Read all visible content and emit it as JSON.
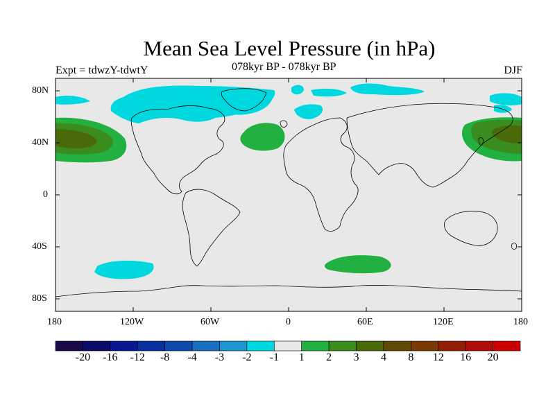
{
  "title": "Mean Sea Level Pressure (in hPa)",
  "subtitle_left": "Expt = tdwzY-tdwtY",
  "subtitle_center": "078kyr BP - 078kyr BP",
  "subtitle_right": "DJF",
  "axes": {
    "lat_ticks": [
      "80N",
      "40N",
      "0",
      "40S",
      "80S"
    ],
    "lon_ticks": [
      "180",
      "120W",
      "60W",
      "0",
      "60E",
      "120E",
      "180"
    ]
  },
  "colorbar": {
    "colors": [
      "#1a0a4a",
      "#0c0c6b",
      "#08188e",
      "#0a2fa0",
      "#0d4aac",
      "#1a6fc0",
      "#1b96d0",
      "#00d8e0",
      "#e8e8e8",
      "#22b040",
      "#3a8c1e",
      "#4a6a0a",
      "#604a06",
      "#7a3a06",
      "#921e04",
      "#b00c0c",
      "#cc0000"
    ],
    "labels": [
      "-20",
      "-16",
      "-12",
      "-8",
      "-4",
      "-3",
      "-2",
      "-1",
      "1",
      "2",
      "3",
      "4",
      "8",
      "12",
      "16",
      "20"
    ]
  },
  "colors": {
    "background": "#e8e8e8",
    "cyan": "#00d8e0",
    "green": "#22b040",
    "dark_green": "#3a8c1e",
    "olive": "#4a6a0a"
  }
}
